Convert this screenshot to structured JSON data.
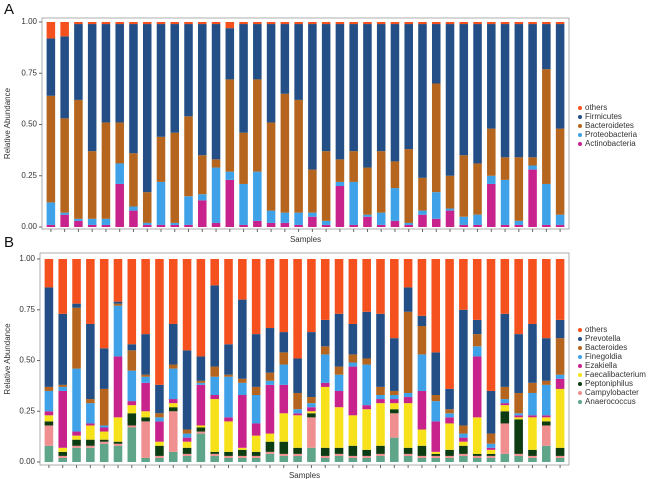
{
  "chart_data": [
    {
      "type": "stacked_bar",
      "panel_label": "A",
      "y_label": "Relative Abundance",
      "x_label": "Samples",
      "legend_position": "right",
      "categories": [
        null,
        null,
        null,
        null,
        null,
        null,
        null,
        null,
        null,
        null,
        null,
        null,
        null,
        null,
        null,
        null,
        null,
        null,
        null,
        null,
        null,
        null,
        null,
        null,
        null,
        null,
        null,
        null,
        null,
        null,
        null,
        null,
        null,
        null,
        null,
        null,
        null,
        null
      ],
      "ylim": [
        0,
        1
      ],
      "yticks": [
        {
          "value": 0,
          "label": "0.00"
        },
        0.25,
        {
          "value": 0.5,
          "label": "0.50"
        },
        0.75,
        {
          "value": 1,
          "label": "1.00"
        }
      ],
      "series": [
        {
          "name": "Actinobacteria",
          "color": "#c8238c",
          "values": [
            0.01,
            0.06,
            0.03,
            0.01,
            0.01,
            0.21,
            0.08,
            0.01,
            0.01,
            0.01,
            0.01,
            0.13,
            0.02,
            0.23,
            0.01,
            0.03,
            0.02,
            0.02,
            0.01,
            0.05,
            0.01,
            0.2,
            0.01,
            0.05,
            0.01,
            0.03,
            0.01,
            0.06,
            0.04,
            0.08,
            0.01,
            0.01,
            0.21,
            0.01,
            0.01,
            0.28,
            0.01,
            0.01
          ]
        },
        {
          "name": "Proteobacteria",
          "color": "#3fa2e8",
          "values": [
            0.11,
            0.01,
            0.01,
            0.03,
            0.03,
            0.1,
            0.02,
            0.01,
            0.21,
            0.01,
            0.14,
            0.03,
            0.27,
            0.04,
            0.2,
            0.24,
            0.06,
            0.05,
            0.06,
            0.02,
            0.02,
            0.02,
            0.21,
            0.01,
            0.06,
            0.16,
            0.01,
            0.02,
            0.13,
            0.01,
            0.04,
            0.05,
            0.04,
            0.22,
            0.02,
            0.02,
            0.2,
            0.05
          ]
        },
        {
          "name": "Bacteroidetes",
          "color": "#b5651d",
          "values": [
            0.52,
            0.46,
            0.58,
            0.33,
            0.47,
            0.2,
            0.26,
            0.15,
            0.22,
            0.44,
            0.39,
            0.19,
            0.04,
            0.45,
            0.25,
            0.45,
            0.43,
            0.58,
            0.55,
            0.21,
            0.34,
            0.11,
            0.15,
            0.23,
            0.3,
            0.13,
            0.36,
            0.16,
            0.53,
            0.16,
            0.3,
            0.25,
            0.23,
            0.11,
            0.31,
            0.04,
            0.56,
            0.42
          ]
        },
        {
          "name": "Firmicutes",
          "color": "#234f86",
          "values": [
            0.28,
            0.4,
            0.37,
            0.62,
            0.48,
            0.48,
            0.63,
            0.82,
            0.55,
            0.53,
            0.45,
            0.64,
            0.66,
            0.25,
            0.53,
            0.27,
            0.48,
            0.34,
            0.37,
            0.71,
            0.62,
            0.66,
            0.62,
            0.7,
            0.62,
            0.67,
            0.61,
            0.75,
            0.29,
            0.74,
            0.64,
            0.68,
            0.51,
            0.65,
            0.65,
            0.65,
            0.22,
            0.51
          ]
        },
        {
          "name": "others",
          "color": "#f4511e",
          "values": [
            0.08,
            0.07,
            0.01,
            0.01,
            0.01,
            0.01,
            0.01,
            0.01,
            0.01,
            0.01,
            0.01,
            0.01,
            0.01,
            0.03,
            0.01,
            0.01,
            0.01,
            0.01,
            0.01,
            0.01,
            0.01,
            0.01,
            0.01,
            0.01,
            0.01,
            0.01,
            0.01,
            0.01,
            0.01,
            0.01,
            0.01,
            0.01,
            0.01,
            0.01,
            0.01,
            0.01,
            0.01,
            0.01
          ]
        }
      ]
    },
    {
      "type": "stacked_bar",
      "panel_label": "B",
      "y_label": "Relative Abundance",
      "x_label": "Samples",
      "legend_position": "right",
      "categories": [
        null,
        null,
        null,
        null,
        null,
        null,
        null,
        null,
        null,
        null,
        null,
        null,
        null,
        null,
        null,
        null,
        null,
        null,
        null,
        null,
        null,
        null,
        null,
        null,
        null,
        null,
        null,
        null,
        null,
        null,
        null,
        null,
        null,
        null,
        null,
        null,
        null,
        null
      ],
      "ylim": [
        0,
        1
      ],
      "yticks": [
        {
          "value": 0,
          "label": "0.00"
        },
        0.25,
        {
          "value": 0.5,
          "label": "0.50"
        },
        0.75,
        {
          "value": 1,
          "label": "1.00"
        }
      ],
      "series": [
        {
          "name": "Anaerococcus",
          "color": "#5fa58a",
          "values": [
            0.08,
            0.02,
            0.07,
            0.07,
            0.09,
            0.08,
            0.17,
            0.02,
            0.02,
            0.05,
            0.03,
            0.14,
            0.03,
            0.02,
            0.02,
            0.02,
            0.04,
            0.03,
            0.03,
            0.07,
            0.02,
            0.03,
            0.02,
            0.02,
            0.03,
            0.12,
            0.03,
            0.02,
            0.02,
            0.02,
            0.03,
            0.02,
            0.02,
            0.04,
            0.03,
            0.02,
            0.08,
            0.02
          ]
        },
        {
          "name": "Campylobacter",
          "color": "#ef8f8f",
          "values": [
            0.1,
            0.01,
            0.01,
            0.01,
            0.01,
            0.01,
            0.01,
            0.18,
            0.01,
            0.2,
            0.01,
            0.01,
            0.01,
            0.01,
            0.01,
            0.01,
            0.01,
            0.01,
            0.01,
            0.15,
            0.01,
            0.01,
            0.01,
            0.01,
            0.01,
            0.12,
            0.01,
            0.01,
            0.01,
            0.01,
            0.01,
            0.01,
            0.01,
            0.15,
            0.01,
            0.01,
            0.1,
            0.01
          ]
        },
        {
          "name": "Peptoniphilus",
          "color": "#0d3b12",
          "values": [
            0.02,
            0.02,
            0.03,
            0.03,
            0.01,
            0.01,
            0.06,
            0.02,
            0.05,
            0.02,
            0.03,
            0.02,
            0.01,
            0.02,
            0.03,
            0.02,
            0.05,
            0.06,
            0.03,
            0.02,
            0.04,
            0.03,
            0.05,
            0.03,
            0.04,
            0.02,
            0.03,
            0.05,
            0.01,
            0.03,
            0.04,
            0.01,
            0.01,
            0.06,
            0.17,
            0.03,
            0.02,
            0.04
          ]
        },
        {
          "name": "Faecalibacterium",
          "color": "#f7e11a",
          "values": [
            0.03,
            0.02,
            0.02,
            0.07,
            0.04,
            0.12,
            0.04,
            0.03,
            0.02,
            0.02,
            0.03,
            0.01,
            0.26,
            0.15,
            0.01,
            0.08,
            0.04,
            0.14,
            0.16,
            0.01,
            0.3,
            0.2,
            0.15,
            0.2,
            0.21,
            0.03,
            0.22,
            0.08,
            0.01,
            0.13,
            0.02,
            0.18,
            0.02,
            0.03,
            0.01,
            0.16,
            0.02,
            0.29
          ]
        },
        {
          "name": "Ezakiella",
          "color": "#c8238c",
          "values": [
            0.02,
            0.28,
            0.02,
            0.01,
            0.02,
            0.3,
            0.02,
            0.14,
            0.1,
            0.02,
            0.02,
            0.2,
            0.02,
            0.02,
            0.26,
            0.06,
            0.24,
            0.14,
            0.01,
            0.02,
            0.02,
            0.08,
            0.24,
            0.02,
            0.02,
            0.02,
            0.03,
            0.19,
            0.15,
            0.03,
            0.02,
            0.3,
            0.01,
            0.01,
            0.01,
            0.01,
            0.01,
            0.05
          ]
        },
        {
          "name": "Finegoldia",
          "color": "#3fa2e8",
          "values": [
            0.1,
            0.02,
            0.31,
            0.1,
            0.01,
            0.25,
            0.15,
            0.03,
            0.02,
            0.15,
            0.02,
            0.01,
            0.09,
            0.2,
            0.06,
            0.14,
            0.02,
            0.1,
            0.02,
            0.02,
            0.14,
            0.08,
            0.02,
            0.2,
            0.02,
            0.02,
            0.02,
            0.18,
            0.1,
            0.02,
            0.02,
            0.05,
            0.02,
            0.02,
            0.01,
            0.11,
            0.15,
            0.02
          ]
        },
        {
          "name": "Bacteroides",
          "color": "#b5651d",
          "values": [
            0.02,
            0.01,
            0.3,
            0.02,
            0.18,
            0.01,
            0.1,
            0.01,
            0.02,
            0.02,
            0.02,
            0.01,
            0.05,
            0.01,
            0.02,
            0.04,
            0.04,
            0.06,
            0.08,
            0.03,
            0.04,
            0.04,
            0.04,
            0.03,
            0.04,
            0.02,
            0.4,
            0.14,
            0.03,
            0.02,
            0.04,
            0.06,
            0.05,
            0.06,
            0.1,
            0.05,
            0.02,
            0.18
          ]
        },
        {
          "name": "Prevotella",
          "color": "#234f86",
          "values": [
            0.49,
            0.35,
            0.02,
            0.37,
            0.2,
            0.01,
            0.03,
            0.2,
            0.14,
            0.2,
            0.39,
            0.12,
            0.4,
            0.15,
            0.39,
            0.26,
            0.22,
            0.1,
            0.17,
            0.32,
            0.13,
            0.26,
            0.15,
            0.23,
            0.36,
            0.26,
            0.12,
            0.05,
            0.21,
            0.1,
            0.57,
            0.07,
            0.21,
            0.36,
            0.29,
            0.29,
            0.21,
            0.09
          ]
        },
        {
          "name": "others",
          "color": "#f4511e",
          "values": [
            0.14,
            0.27,
            0.22,
            0.32,
            0.44,
            0.21,
            0.42,
            0.37,
            0.62,
            0.32,
            0.45,
            0.48,
            0.13,
            0.42,
            0.2,
            0.37,
            0.34,
            0.36,
            0.49,
            0.36,
            0.3,
            0.27,
            0.32,
            0.26,
            0.27,
            0.39,
            0.14,
            0.28,
            0.46,
            0.64,
            0.25,
            0.3,
            0.65,
            0.27,
            0.37,
            0.32,
            0.39,
            0.3
          ]
        }
      ]
    }
  ]
}
